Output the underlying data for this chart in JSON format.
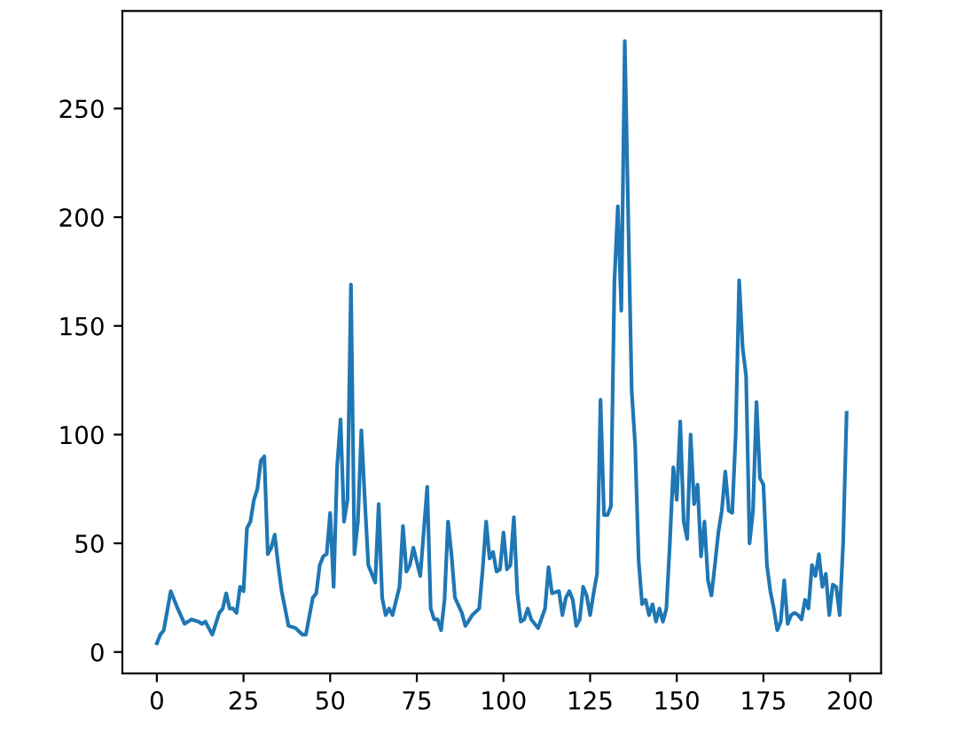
{
  "chart_data": {
    "type": "line",
    "x": [
      0,
      1,
      2,
      4,
      6,
      8,
      10,
      12,
      13,
      14,
      16,
      18,
      19,
      20,
      21,
      22,
      23,
      24,
      25,
      26,
      27,
      28,
      29,
      30,
      31,
      32,
      33,
      34,
      35,
      36,
      38,
      40,
      42,
      43,
      45,
      46,
      47,
      48,
      49,
      50,
      51,
      52,
      53,
      54,
      55,
      56,
      57,
      58,
      59,
      60,
      61,
      63,
      64,
      65,
      66,
      67,
      68,
      70,
      71,
      72,
      73,
      74,
      76,
      78,
      79,
      80,
      81,
      82,
      83,
      84,
      85,
      86,
      88,
      89,
      91,
      93,
      94,
      95,
      96,
      97,
      98,
      99,
      100,
      101,
      102,
      103,
      104,
      105,
      106,
      107,
      108,
      110,
      112,
      113,
      114,
      116,
      117,
      118,
      119,
      120,
      121,
      122,
      123,
      124,
      125,
      126,
      127,
      128,
      129,
      130,
      131,
      132,
      133,
      134,
      135,
      136,
      137,
      138,
      139,
      140,
      141,
      142,
      143,
      144,
      145,
      146,
      147,
      148,
      149,
      150,
      151,
      152,
      153,
      154,
      155,
      156,
      157,
      158,
      159,
      160,
      161,
      162,
      163,
      164,
      165,
      166,
      167,
      168,
      169,
      170,
      171,
      172,
      173,
      174,
      175,
      176,
      177,
      178,
      179,
      180,
      181,
      182,
      183,
      184,
      185,
      186,
      187,
      188,
      189,
      190,
      191,
      192,
      193,
      194,
      195,
      196,
      197,
      198,
      199
    ],
    "values": [
      4,
      8,
      10,
      28,
      20,
      13,
      15,
      14,
      13,
      14,
      8,
      18,
      20,
      27,
      20,
      20,
      18,
      30,
      28,
      57,
      60,
      70,
      75,
      88,
      90,
      45,
      48,
      54,
      40,
      28,
      12,
      11,
      8,
      8,
      25,
      27,
      40,
      44,
      45,
      64,
      30,
      85,
      107,
      60,
      70,
      169,
      45,
      60,
      102,
      70,
      40,
      32,
      68,
      25,
      17,
      20,
      17,
      30,
      58,
      37,
      40,
      48,
      35,
      76,
      20,
      15,
      15,
      10,
      24,
      60,
      45,
      25,
      18,
      12,
      17,
      20,
      38,
      60,
      43,
      46,
      37,
      38,
      55,
      38,
      40,
      62,
      27,
      14,
      15,
      20,
      15,
      11,
      20,
      39,
      27,
      28,
      17,
      25,
      28,
      24,
      12,
      15,
      30,
      26,
      17,
      27,
      36,
      116,
      63,
      63,
      67,
      170,
      205,
      157,
      281,
      200,
      120,
      95,
      42,
      22,
      24,
      17,
      22,
      14,
      20,
      14,
      20,
      50,
      85,
      70,
      106,
      60,
      52,
      100,
      68,
      77,
      44,
      60,
      33,
      26,
      40,
      55,
      65,
      83,
      65,
      64,
      100,
      171,
      140,
      127,
      50,
      65,
      115,
      80,
      77,
      40,
      28,
      20,
      10,
      14,
      33,
      13,
      17,
      18,
      17,
      15,
      24,
      20,
      40,
      35,
      45,
      30,
      36,
      17,
      31,
      30,
      17,
      50,
      110
    ],
    "color": "#1f77b4",
    "xlim": [
      -9.95,
      208.95
    ],
    "ylim": [
      -9.85,
      294.85
    ],
    "xticks": [
      0,
      25,
      50,
      75,
      100,
      125,
      150,
      175,
      200
    ],
    "yticks": [
      0,
      50,
      100,
      150,
      200,
      250
    ],
    "grid": false,
    "marker": "none",
    "line_style": "solid"
  }
}
